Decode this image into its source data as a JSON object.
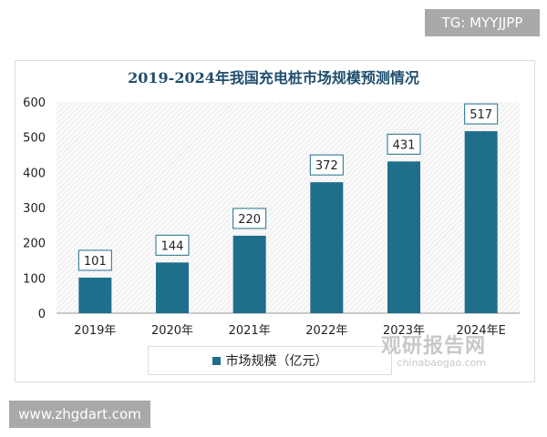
{
  "badges": {
    "top": "TG: MYYJJPP",
    "bottom": "www.zhgdart.com"
  },
  "watermark": {
    "name": "观研报告网",
    "url": "chinabaogao.com"
  },
  "chart_data": {
    "type": "bar",
    "title": "2019-2024年我国充电桩市场规模预测情况",
    "categories": [
      "2019年",
      "2020年",
      "2021年",
      "2022年",
      "2023年",
      "2024年E"
    ],
    "series": [
      {
        "name": "市场规模（亿元）",
        "values": [
          101,
          144,
          220,
          372,
          431,
          517
        ],
        "color": "#1f6e8c"
      }
    ],
    "ylim": [
      0,
      600
    ],
    "yticks": [
      0,
      100,
      200,
      300,
      400,
      500,
      600
    ],
    "legend": "bottom",
    "grid": false
  }
}
